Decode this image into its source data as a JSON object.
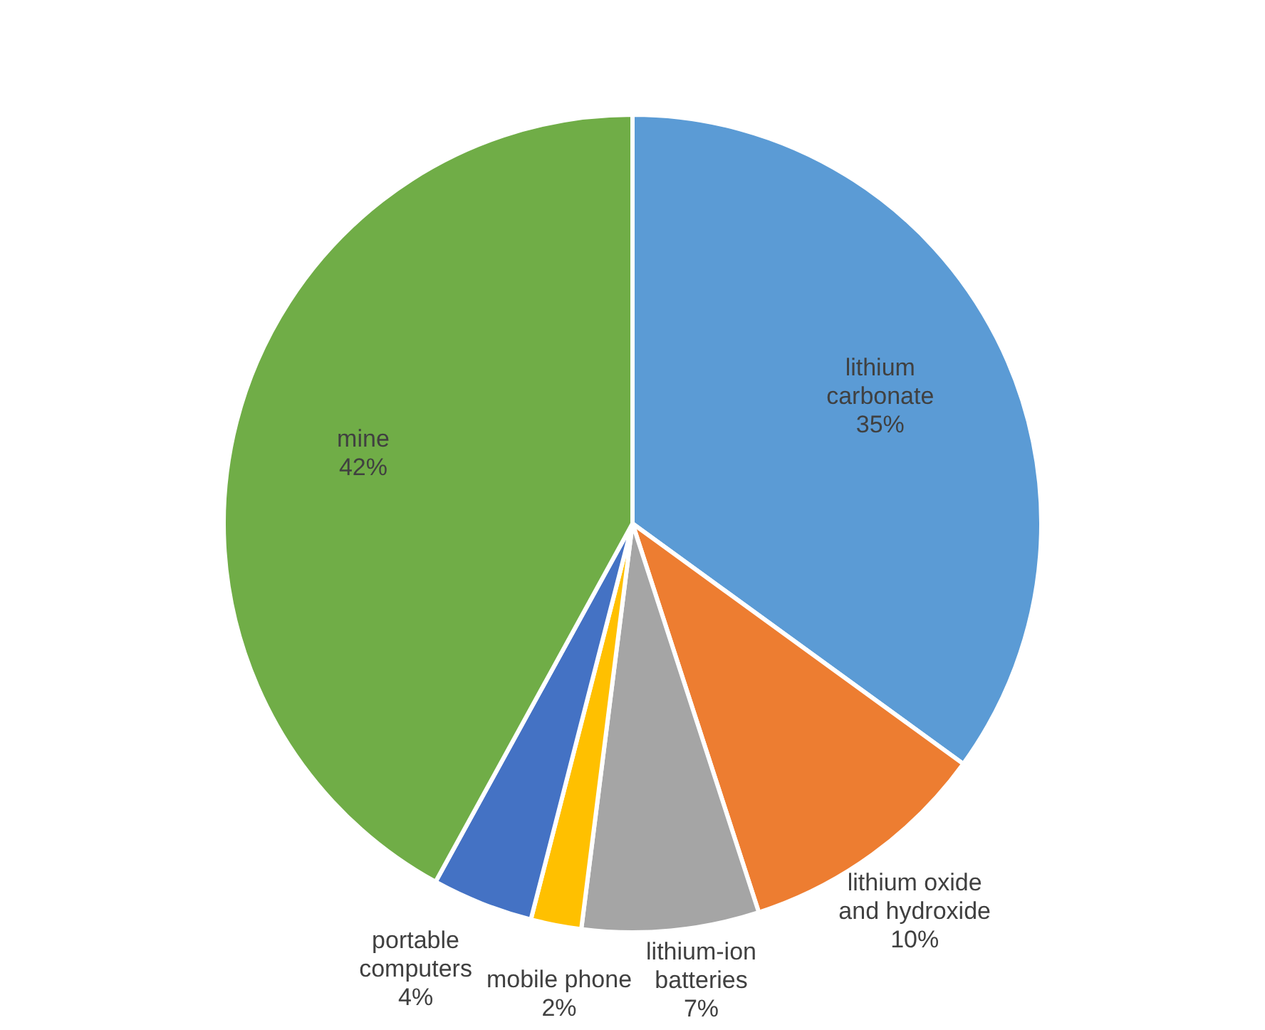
{
  "chart_data": {
    "type": "pie",
    "categories": [
      "lithium carbonate",
      "lithium oxide and hydroxide",
      "lithium-ion batteries",
      "mobile phone",
      "portable computers",
      "mine"
    ],
    "values": [
      35,
      10,
      7,
      2,
      4,
      42
    ],
    "colors": [
      "#5b9bd5",
      "#ed7d31",
      "#a5a5a5",
      "#ffc000",
      "#4472c4",
      "#70ad47"
    ],
    "value_labels": [
      "35%",
      "10%",
      "7%",
      "2%",
      "4%",
      "42%"
    ],
    "legend": false
  }
}
